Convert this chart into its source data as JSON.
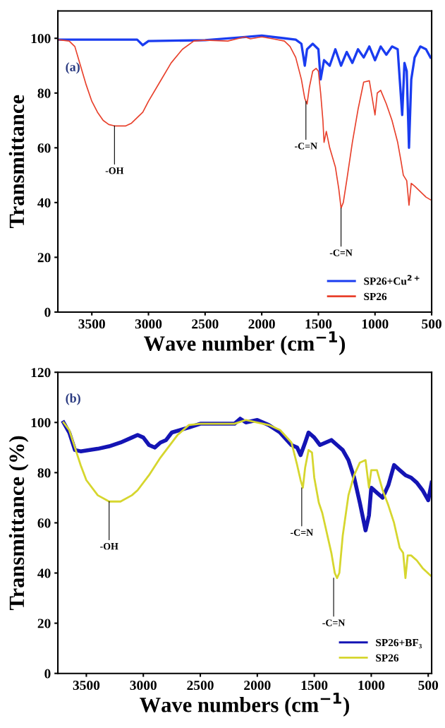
{
  "chart_data": [
    {
      "type": "line",
      "xlabel": "Wave number (cm$^{−1}$)",
      "ylabel": "Transmittance",
      "xlim": [
        3800,
        500
      ],
      "ylim": [
        0,
        110
      ],
      "xticks": [
        3500,
        3000,
        2500,
        2000,
        1500,
        1000,
        500
      ],
      "yticks": [
        0,
        20,
        40,
        60,
        80,
        100
      ],
      "grid": false,
      "legend": "bottom right",
      "marker": "none",
      "line_style": "solid",
      "annotations": [
        "(a)",
        {
          "text": "-OH",
          "x": 3300,
          "y": 68
        },
        {
          "text": "-C=N",
          "x": 1610,
          "y": 77
        },
        {
          "text": "-C=N",
          "x": 1300,
          "y": 38
        }
      ],
      "series": [
        {
          "name": "SP26+Cu$^{2+}$",
          "color": "#1a3cf0",
          "x": [
            3800,
            3100,
            3050,
            3000,
            2500,
            2200,
            2000,
            1800,
            1700,
            1650,
            1620,
            1600,
            1550,
            1500,
            1480,
            1450,
            1400,
            1350,
            1300,
            1250,
            1200,
            1150,
            1100,
            1050,
            1000,
            950,
            900,
            850,
            800,
            760,
            740,
            720,
            700,
            680,
            650,
            600,
            550,
            510
          ],
          "values": [
            99.5,
            99.5,
            97.5,
            99,
            99.3,
            100.3,
            101,
            100,
            99.5,
            98,
            90,
            96,
            98,
            96,
            85,
            92,
            90,
            96,
            90,
            95,
            91,
            96,
            93,
            97,
            92,
            97,
            94,
            97,
            96,
            72,
            91,
            88,
            60,
            85,
            93,
            97,
            96,
            93
          ]
        },
        {
          "name": "SP26",
          "color": "#e8412c",
          "x": [
            3800,
            3700,
            3650,
            3600,
            3550,
            3500,
            3450,
            3400,
            3350,
            3300,
            3200,
            3150,
            3100,
            3050,
            3000,
            2900,
            2800,
            2700,
            2600,
            2500,
            2300,
            2200,
            2150,
            2100,
            2000,
            1900,
            1800,
            1750,
            1700,
            1650,
            1620,
            1600,
            1580,
            1550,
            1520,
            1500,
            1480,
            1460,
            1450,
            1430,
            1400,
            1350,
            1320,
            1300,
            1280,
            1250,
            1200,
            1150,
            1100,
            1050,
            1000,
            980,
            950,
            900,
            850,
            800,
            770,
            750,
            720,
            700,
            680,
            650,
            600,
            550,
            510
          ],
          "values": [
            99.5,
            99,
            97,
            90,
            83,
            77,
            73,
            70,
            68.5,
            68,
            68,
            69,
            71,
            73,
            77,
            84,
            91,
            96,
            99,
            99.3,
            99,
            100,
            100.5,
            99.8,
            100.5,
            99.8,
            99,
            97,
            93,
            85,
            78,
            76,
            82,
            88,
            89,
            88,
            80,
            70,
            62,
            66,
            60,
            53,
            45,
            38,
            40,
            48,
            62,
            74,
            84,
            84.5,
            72,
            80,
            81,
            76,
            70,
            62,
            55,
            50,
            48,
            39,
            47,
            46,
            44,
            42,
            41
          ]
        }
      ]
    },
    {
      "type": "line",
      "xlabel": "Wave numbers (cm$^{−1}$)",
      "ylabel": "Transmittance (%)",
      "xlim": [
        3750,
        470
      ],
      "ylim": [
        0,
        120
      ],
      "xticks": [
        3500,
        3000,
        2500,
        2000,
        1500,
        1000,
        500
      ],
      "yticks": [
        0,
        20,
        40,
        60,
        80,
        100,
        120
      ],
      "grid": false,
      "legend": "bottom right",
      "marker": "none",
      "line_style": "solid",
      "annotations": [
        "(b)",
        {
          "text": "-OH",
          "x": 3300,
          "y": 68.5
        },
        {
          "text": "-C=N",
          "x": 1610,
          "y": 74
        },
        {
          "text": "-C=N",
          "x": 1330,
          "y": 38
        }
      ],
      "series": [
        {
          "name": "SP26+BF₃",
          "color": "#1414b4",
          "x": [
            3700,
            3650,
            3600,
            3550,
            3400,
            3300,
            3200,
            3100,
            3050,
            3000,
            2950,
            2900,
            2850,
            2800,
            2750,
            2600,
            2500,
            2200,
            2150,
            2100,
            2000,
            1900,
            1800,
            1700,
            1650,
            1620,
            1580,
            1550,
            1500,
            1450,
            1400,
            1350,
            1300,
            1250,
            1200,
            1150,
            1100,
            1050,
            1020,
            1000,
            950,
            900,
            850,
            800,
            750,
            700,
            650,
            600,
            550,
            500,
            470
          ],
          "values": [
            100,
            96,
            89,
            88.5,
            89.5,
            90.5,
            92,
            94,
            95,
            94,
            91,
            90,
            92,
            93,
            96,
            98,
            99.5,
            99.5,
            101.5,
            100,
            101,
            99,
            96,
            91,
            90,
            87,
            92,
            96,
            94,
            91,
            92,
            93,
            91,
            89,
            85,
            78,
            68,
            57,
            63,
            74,
            72,
            70,
            75,
            83,
            81,
            79,
            78,
            76,
            73,
            69,
            76
          ]
        },
        {
          "name": "SP26",
          "color": "#d6d62e",
          "x": [
            3700,
            3650,
            3600,
            3550,
            3500,
            3400,
            3300,
            3200,
            3100,
            3050,
            2950,
            2850,
            2700,
            2600,
            2500,
            2200,
            2100,
            2000,
            1900,
            1800,
            1700,
            1650,
            1620,
            1600,
            1580,
            1550,
            1520,
            1500,
            1460,
            1430,
            1400,
            1350,
            1320,
            1300,
            1280,
            1250,
            1200,
            1150,
            1100,
            1050,
            1020,
            1000,
            950,
            900,
            850,
            800,
            750,
            720,
            700,
            680,
            650,
            600,
            550,
            480
          ],
          "values": [
            100,
            97,
            90,
            83,
            77,
            71,
            68.5,
            68.5,
            71,
            73,
            79,
            86,
            95,
            99,
            99.5,
            99.5,
            101,
            100,
            99,
            97,
            92,
            83,
            77,
            74,
            82,
            89,
            88,
            78,
            68,
            64,
            58,
            48,
            40,
            38,
            40,
            55,
            71,
            79,
            84,
            85,
            74,
            81,
            81,
            73,
            67,
            60,
            50,
            48,
            38,
            47,
            47,
            45,
            42,
            39
          ]
        }
      ]
    }
  ]
}
